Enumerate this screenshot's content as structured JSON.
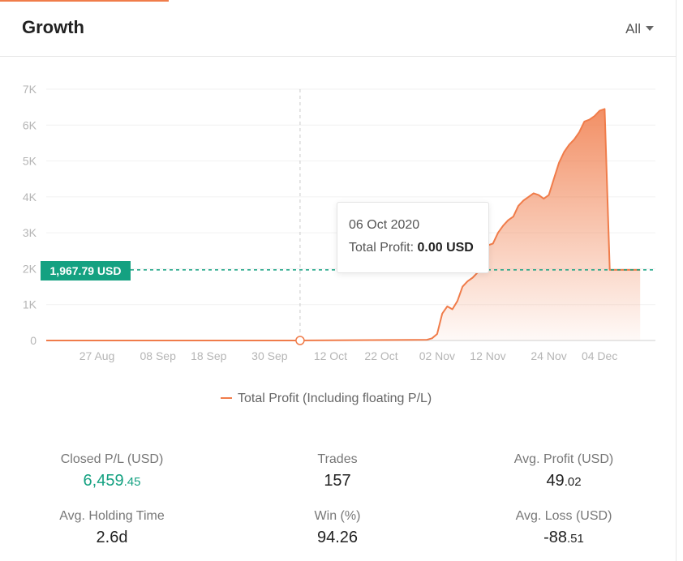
{
  "header": {
    "title": "Growth",
    "range": "All"
  },
  "tooltip": {
    "date": "06 Oct 2020",
    "label": "Total Profit:",
    "value": "0.00 USD"
  },
  "crosshair": {
    "y_label": "1,967.79 USD",
    "y_value": 1967.79,
    "x": "2020-10-06"
  },
  "legend": {
    "label": "Total Profit (Including floating P/L)"
  },
  "chart_data": {
    "type": "area",
    "title": "",
    "xlabel": "",
    "ylabel": "",
    "ylim": [
      0,
      7000
    ],
    "xlim": [
      "2020-08-17",
      "2020-12-15"
    ],
    "y_ticks": [
      0,
      1000,
      2000,
      3000,
      4000,
      5000,
      6000,
      7000
    ],
    "y_tick_labels": [
      "0",
      "1K",
      "2K",
      "3K",
      "4K",
      "5K",
      "6K",
      "7K"
    ],
    "x_ticks": [
      "2020-08-27",
      "2020-09-08",
      "2020-09-18",
      "2020-09-30",
      "2020-10-12",
      "2020-10-22",
      "2020-11-02",
      "2020-11-12",
      "2020-11-24",
      "2020-12-04"
    ],
    "x_tick_labels": [
      "27 Aug",
      "08 Sep",
      "18 Sep",
      "30 Sep",
      "12 Oct",
      "22 Oct",
      "02 Nov",
      "12 Nov",
      "24 Nov",
      "04 Dec"
    ],
    "grid": true,
    "legend_position": "bottom",
    "color": "#f07c4a",
    "series": [
      {
        "name": "Total Profit (Including floating P/L)",
        "x": [
          "2020-08-17",
          "2020-10-06",
          "2020-10-31",
          "2020-11-01",
          "2020-11-02",
          "2020-11-03",
          "2020-11-04",
          "2020-11-05",
          "2020-11-06",
          "2020-11-07",
          "2020-11-08",
          "2020-11-09",
          "2020-11-10",
          "2020-11-11",
          "2020-11-12",
          "2020-11-13",
          "2020-11-14",
          "2020-11-15",
          "2020-11-16",
          "2020-11-17",
          "2020-11-18",
          "2020-11-19",
          "2020-11-20",
          "2020-11-21",
          "2020-11-22",
          "2020-11-23",
          "2020-11-24",
          "2020-11-25",
          "2020-11-26",
          "2020-11-27",
          "2020-11-28",
          "2020-11-29",
          "2020-11-30",
          "2020-12-01",
          "2020-12-02",
          "2020-12-03",
          "2020-12-04",
          "2020-12-05",
          "2020-12-06",
          "2020-12-07",
          "2020-12-08",
          "2020-12-09",
          "2020-12-10",
          "2020-12-11",
          "2020-12-12"
        ],
        "values": [
          0,
          0,
          20,
          60,
          180,
          750,
          950,
          870,
          1100,
          1500,
          1650,
          1750,
          1900,
          2300,
          2650,
          2700,
          3000,
          3200,
          3350,
          3450,
          3750,
          3900,
          4000,
          4100,
          4050,
          3950,
          4050,
          4500,
          4950,
          5250,
          5450,
          5600,
          5800,
          6100,
          6150,
          6250,
          6400,
          6450,
          1967.79,
          1967.79,
          1967.79,
          1967.79,
          1967.79,
          1967.79,
          1967.79
        ]
      }
    ]
  },
  "stats": {
    "closed_pl": {
      "label": "Closed P/L (USD)",
      "int": "6,459",
      "dec": ".45"
    },
    "trades": {
      "label": "Trades",
      "value": "157"
    },
    "avg_profit": {
      "label": "Avg. Profit (USD)",
      "int": "49",
      "dec": ".02"
    },
    "holding_time": {
      "label": "Avg. Holding Time",
      "value": "2.6d"
    },
    "win": {
      "label": "Win (%)",
      "value": "94.26"
    },
    "avg_loss": {
      "label": "Avg. Loss (USD)",
      "int": "-88",
      "dec": ".51"
    }
  }
}
